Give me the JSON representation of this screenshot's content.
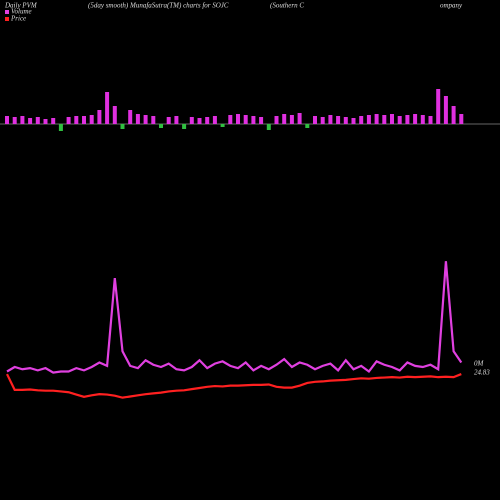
{
  "chart_data": [
    {
      "type": "bar",
      "title_parts": [
        "Daily PVM",
        "(5day smooth) MunafaSutra(TM) charts for SOJC",
        "(Southern C",
        "ompany"
      ],
      "values": [
        8,
        7,
        8,
        6,
        7,
        5,
        6,
        -7,
        7,
        8,
        8,
        9,
        14,
        32,
        18,
        -5,
        14,
        10,
        9,
        8,
        -4,
        7,
        8,
        -5,
        7,
        6,
        7,
        8,
        -3,
        9,
        10,
        9,
        8,
        7,
        -6,
        8,
        10,
        9,
        11,
        -4,
        8,
        7,
        9,
        8,
        7,
        6,
        8,
        9,
        10,
        9,
        10,
        8,
        9,
        10,
        9,
        8,
        35,
        28,
        18,
        10
      ],
      "positive_color": "#e030e0",
      "negative_color": "#30c040",
      "ylim": [
        -36,
        74
      ]
    },
    {
      "type": "line",
      "series": [
        {
          "name": "Volume",
          "color": "#e040e0",
          "values": [
            12,
            16,
            14,
            15,
            13,
            15,
            11,
            12,
            12,
            15,
            13,
            16,
            20,
            17,
            95,
            30,
            17,
            15,
            22,
            18,
            16,
            19,
            14,
            13,
            16,
            22,
            15,
            19,
            21,
            17,
            15,
            20,
            13,
            17,
            14,
            18,
            23,
            16,
            20,
            18,
            14,
            17,
            19,
            13,
            22,
            14,
            17,
            12,
            21,
            18,
            16,
            13,
            20,
            17,
            16,
            18,
            14,
            110,
            30,
            20
          ]
        },
        {
          "name": "Price",
          "color": "#ff2020",
          "axis": "y2",
          "values": [
            24.83,
            24.42,
            24.42,
            24.43,
            24.41,
            24.4,
            24.4,
            24.38,
            24.36,
            24.3,
            24.24,
            24.28,
            24.31,
            24.3,
            24.27,
            24.22,
            24.25,
            24.28,
            24.31,
            24.33,
            24.35,
            24.38,
            24.4,
            24.41,
            24.44,
            24.47,
            24.5,
            24.52,
            24.51,
            24.53,
            24.53,
            24.54,
            24.55,
            24.55,
            24.56,
            24.5,
            24.48,
            24.48,
            24.53,
            24.6,
            24.63,
            24.64,
            24.66,
            24.67,
            24.68,
            24.7,
            24.72,
            24.71,
            24.73,
            24.74,
            24.75,
            24.74,
            24.76,
            24.75,
            24.76,
            24.77,
            24.75,
            24.76,
            24.75,
            24.83
          ]
        }
      ],
      "volume_label": "0M",
      "ylim": [
        0,
        120
      ],
      "y2lim": [
        23.9,
        28.3
      ]
    }
  ]
}
